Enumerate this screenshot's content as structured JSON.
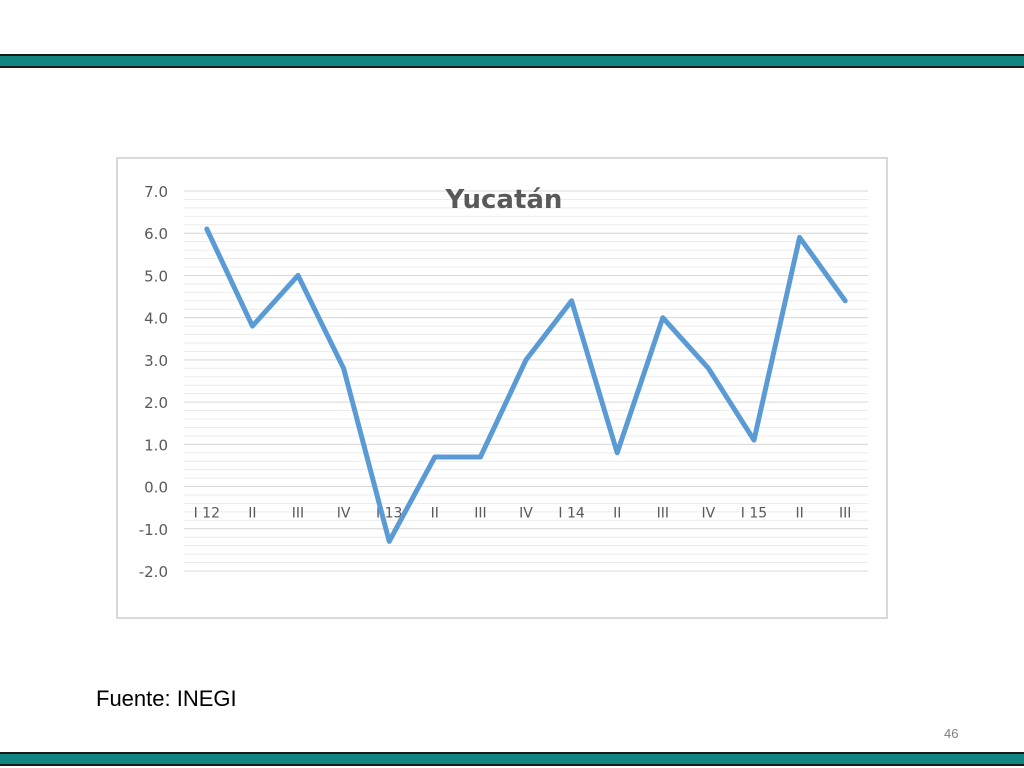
{
  "colors": {
    "band": "#138581",
    "line": "#5b9bd5",
    "grid": "#d9d9d9",
    "axis_text": "#595959",
    "title": "#595959"
  },
  "slide": {
    "source": "Fuente: INEGI",
    "page_number": "46"
  },
  "chart_data": {
    "type": "line",
    "title": "Yucatán",
    "xlabel": "",
    "ylabel": "",
    "categories": [
      "I 12",
      "II",
      "III",
      "IV",
      "I 13",
      "II",
      "III",
      "IV",
      "I 14",
      "II",
      "III",
      "IV",
      "I 15",
      "II",
      "III"
    ],
    "series": [
      {
        "values": [
          6.1,
          3.8,
          5.0,
          2.8,
          -1.3,
          0.7,
          0.7,
          3.0,
          4.4,
          0.8,
          4.0,
          2.8,
          1.1,
          5.9,
          4.4
        ]
      }
    ],
    "ylim": [
      -2.0,
      7.0
    ],
    "y_ticks": [
      "7.0",
      "6.0",
      "5.0",
      "4.0",
      "3.0",
      "2.0",
      "1.0",
      "0.0",
      "-1.0",
      "-2.0"
    ],
    "minor_gridlines": true,
    "legend": "none"
  }
}
